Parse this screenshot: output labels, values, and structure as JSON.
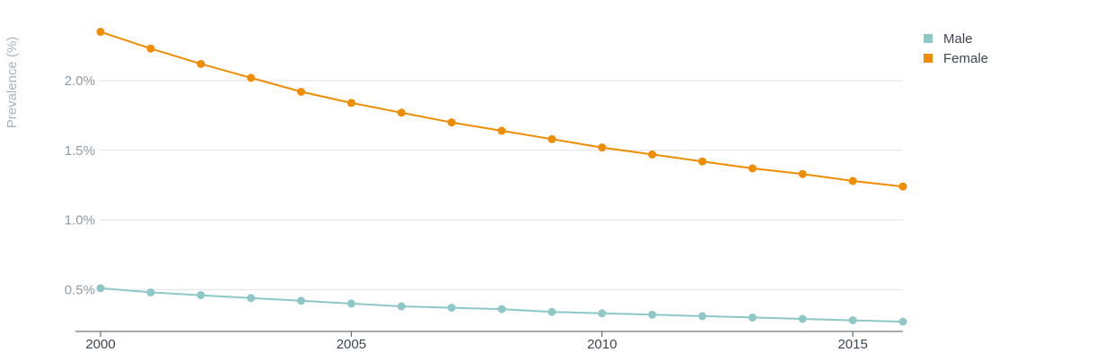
{
  "chart_data": {
    "type": "line",
    "title": "",
    "xlabel": "",
    "ylabel": "Prevalence (%)",
    "x": [
      2000,
      2001,
      2002,
      2003,
      2004,
      2005,
      2006,
      2007,
      2008,
      2009,
      2010,
      2011,
      2012,
      2013,
      2014,
      2015,
      2016
    ],
    "xlim": [
      2000,
      2016
    ],
    "ylim": [
      0.2,
      2.45
    ],
    "x_ticks": [
      2000,
      2005,
      2010,
      2015
    ],
    "x_tick_labels": [
      "2000",
      "2005",
      "2010",
      "2015"
    ],
    "y_ticks": [
      0.5,
      1.0,
      1.5,
      2.0
    ],
    "y_tick_labels": [
      "0.5%",
      "1.0%",
      "1.5%",
      "2.0%"
    ],
    "grid": "horizontal",
    "legend_position": "top-right",
    "series": [
      {
        "name": "Male",
        "color": "#8ec8c6",
        "values": [
          0.51,
          0.48,
          0.46,
          0.44,
          0.42,
          0.4,
          0.38,
          0.37,
          0.36,
          0.34,
          0.33,
          0.32,
          0.31,
          0.3,
          0.29,
          0.28,
          0.27
        ]
      },
      {
        "name": "Female",
        "color": "#ef8c00",
        "values": [
          2.35,
          2.23,
          2.12,
          2.02,
          1.92,
          1.84,
          1.77,
          1.7,
          1.64,
          1.58,
          1.52,
          1.47,
          1.42,
          1.37,
          1.33,
          1.28,
          1.24
        ]
      }
    ]
  }
}
